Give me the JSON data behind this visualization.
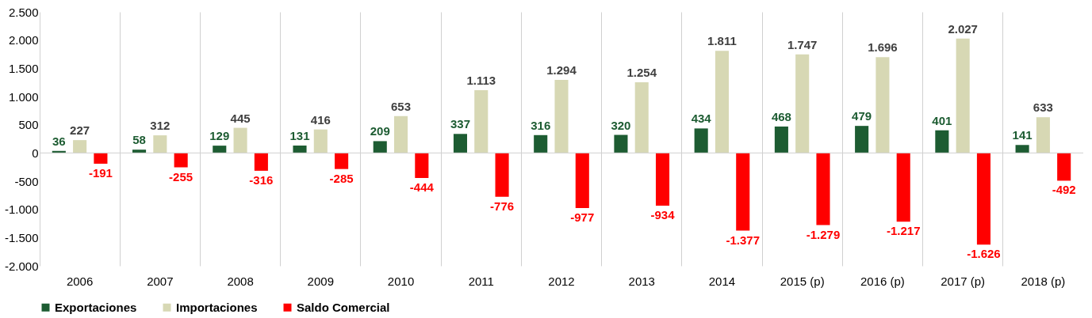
{
  "chart_data": {
    "type": "bar",
    "categories": [
      "2006",
      "2007",
      "2008",
      "2009",
      "2010",
      "2011",
      "2012",
      "2013",
      "2014",
      "2015 (p)",
      "2016 (p)",
      "2017 (p)",
      "2018 (p)"
    ],
    "series": [
      {
        "name": "Exportaciones",
        "color": "#1d5c32",
        "values": [
          36,
          58,
          129,
          131,
          209,
          337,
          316,
          320,
          434,
          468,
          479,
          401,
          141
        ],
        "value_labels": [
          "36",
          "58",
          "129",
          "131",
          "209",
          "337",
          "316",
          "320",
          "434",
          "468",
          "479",
          "401",
          "141"
        ]
      },
      {
        "name": "Importaciones",
        "color": "#d7d8b4",
        "values": [
          227,
          312,
          445,
          416,
          653,
          1113,
          1294,
          1254,
          1811,
          1747,
          1696,
          2027,
          633
        ],
        "value_labels": [
          "227",
          "312",
          "445",
          "416",
          "653",
          "1.113",
          "1.294",
          "1.254",
          "1.811",
          "1.747",
          "1.696",
          "2.027",
          "633"
        ]
      },
      {
        "name": "Saldo Comercial",
        "color": "#ff0000",
        "values": [
          -191,
          -255,
          -316,
          -285,
          -444,
          -776,
          -977,
          -934,
          -1377,
          -1279,
          -1217,
          -1626,
          -492
        ],
        "value_labels": [
          "-191",
          "-255",
          "-316",
          "-285",
          "-444",
          "-776",
          "-977",
          "-934",
          "-1.377",
          "-1.279",
          "-1.217",
          "-1.626",
          "-492"
        ]
      }
    ],
    "ylim": [
      -2000,
      2500
    ],
    "yticks": [
      {
        "value": -2000,
        "label": "-2.000"
      },
      {
        "value": -1500,
        "label": "-1.500"
      },
      {
        "value": -1000,
        "label": "-1.000"
      },
      {
        "value": -500,
        "label": "-500"
      },
      0,
      500,
      {
        "value": 1000,
        "label": "1.000"
      },
      {
        "value": 1500,
        "label": "1.500"
      },
      {
        "value": 2000,
        "label": "2.000"
      },
      {
        "value": 2500,
        "label": "2.500"
      }
    ],
    "grid": "x",
    "legend": "bottom",
    "ref_lines": [
      {
        "axis": "y",
        "value": 0,
        "color": "#d0d0d0"
      }
    ]
  }
}
